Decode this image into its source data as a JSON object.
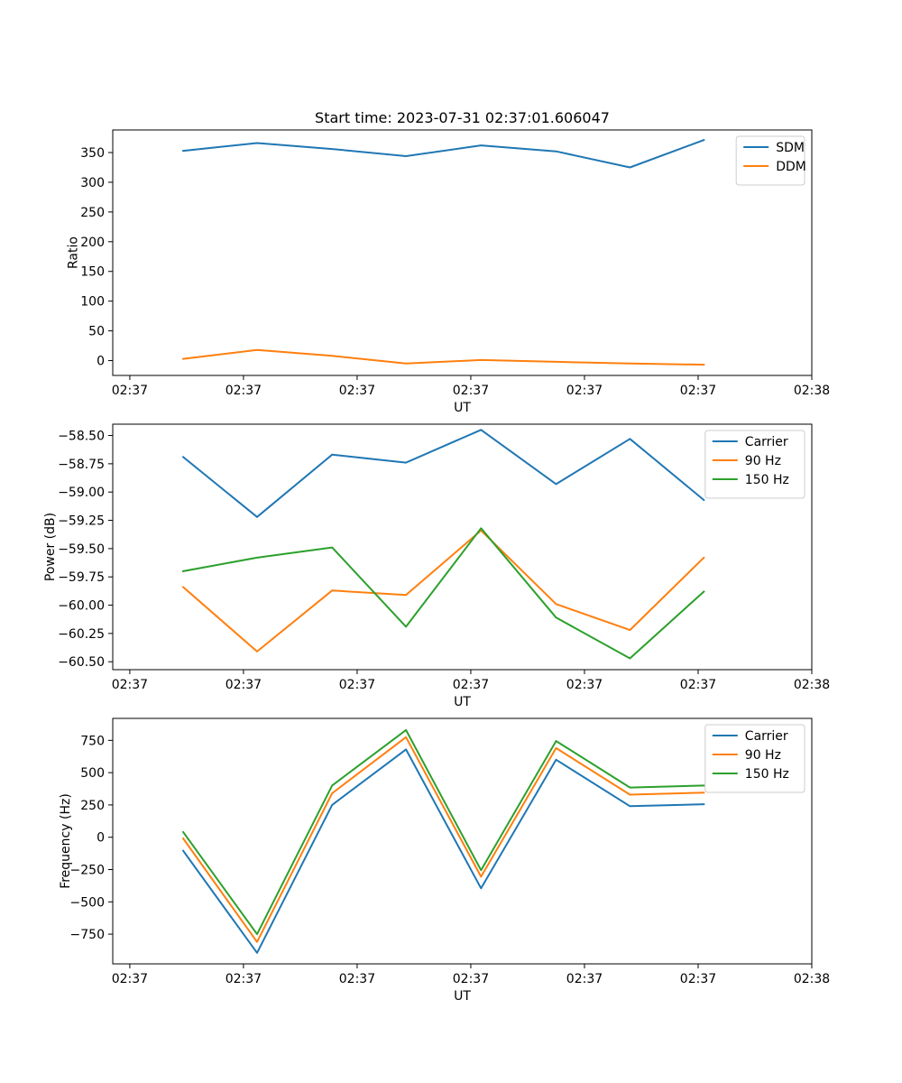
{
  "chart_data": [
    {
      "type": "line",
      "title": "Start time: 2023-07-31 02:37:01.606047",
      "xlabel": "UT",
      "ylabel": "Ratio",
      "x_tick_labels": [
        "02:37",
        "02:37",
        "02:37",
        "02:37",
        "02:37",
        "02:37",
        "02:38"
      ],
      "x_ticks": [
        0,
        1,
        2,
        3,
        4,
        5,
        6
      ],
      "xlim": [
        -0.15,
        6.0
      ],
      "x": [
        0.47,
        1.12,
        1.78,
        2.43,
        3.09,
        3.75,
        4.4,
        5.05
      ],
      "yticks": [
        0,
        50,
        100,
        150,
        200,
        250,
        300,
        350
      ],
      "ylim": [
        -25,
        388
      ],
      "legend_position": "top-right",
      "series": [
        {
          "name": "SDM",
          "color": "#1f77b4",
          "values": [
            353,
            366,
            356,
            344,
            362,
            352,
            325,
            371
          ]
        },
        {
          "name": "DDM",
          "color": "#ff7f0e",
          "values": [
            3,
            18,
            8,
            -5,
            1,
            -2,
            -5,
            -7
          ]
        }
      ]
    },
    {
      "type": "line",
      "title": "",
      "xlabel": "UT",
      "ylabel": "Power (dB)",
      "x_tick_labels": [
        "02:37",
        "02:37",
        "02:37",
        "02:37",
        "02:37",
        "02:37",
        "02:38"
      ],
      "x_ticks": [
        0,
        1,
        2,
        3,
        4,
        5,
        6
      ],
      "xlim": [
        -0.15,
        6.0
      ],
      "x": [
        0.47,
        1.12,
        1.78,
        2.43,
        3.09,
        3.75,
        4.4,
        5.05
      ],
      "yticks": [
        -60.5,
        -60.25,
        -60.0,
        -59.75,
        -59.5,
        -59.25,
        -59.0,
        -58.75,
        -58.5
      ],
      "ytick_labels": [
        "−60.50",
        "−60.25",
        "−60.00",
        "−59.75",
        "−59.50",
        "−59.25",
        "−59.00",
        "−58.75",
        "−58.50"
      ],
      "ylim": [
        -60.57,
        -58.4
      ],
      "legend_position": "top-right",
      "series": [
        {
          "name": "Carrier",
          "color": "#1f77b4",
          "values": [
            -58.69,
            -59.22,
            -58.67,
            -58.74,
            -58.45,
            -58.93,
            -58.53,
            -59.07
          ]
        },
        {
          "name": "90 Hz",
          "color": "#ff7f0e",
          "values": [
            -59.84,
            -60.41,
            -59.87,
            -59.91,
            -59.34,
            -59.99,
            -60.22,
            -59.58
          ]
        },
        {
          "name": "150 Hz",
          "color": "#2ca02c",
          "values": [
            -59.7,
            -59.58,
            -59.49,
            -60.19,
            -59.32,
            -60.11,
            -60.47,
            -59.88
          ]
        }
      ]
    },
    {
      "type": "line",
      "title": "",
      "xlabel": "UT",
      "ylabel": "Frequency (Hz)",
      "x_tick_labels": [
        "02:37",
        "02:37",
        "02:37",
        "02:37",
        "02:37",
        "02:37",
        "02:38"
      ],
      "x_ticks": [
        0,
        1,
        2,
        3,
        4,
        5,
        6
      ],
      "xlim": [
        -0.15,
        6.0
      ],
      "x": [
        0.47,
        1.12,
        1.78,
        2.43,
        3.09,
        3.75,
        4.4,
        5.05
      ],
      "yticks": [
        -750,
        -500,
        -250,
        0,
        250,
        500,
        750
      ],
      "ytick_labels": [
        "−750",
        "−500",
        "−250",
        "0",
        "250",
        "500",
        "750"
      ],
      "ylim": [
        -980,
        920
      ],
      "legend_position": "top-right",
      "series": [
        {
          "name": "Carrier",
          "color": "#1f77b4",
          "values": [
            -105,
            -895,
            250,
            680,
            -395,
            600,
            240,
            255
          ]
        },
        {
          "name": "90 Hz",
          "color": "#ff7f0e",
          "values": [
            -10,
            -810,
            340,
            775,
            -305,
            690,
            330,
            345
          ]
        },
        {
          "name": "150 Hz",
          "color": "#2ca02c",
          "values": [
            40,
            -750,
            400,
            830,
            -255,
            745,
            385,
            400
          ]
        }
      ]
    }
  ]
}
